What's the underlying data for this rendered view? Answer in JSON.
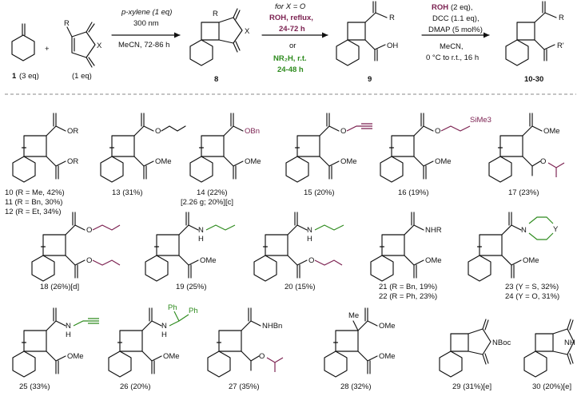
{
  "colors": {
    "maroon": "#7a1f4f",
    "green": "#2e8b1e",
    "ink": "#111111",
    "divider": "#888888"
  },
  "scheme": {
    "reagent1": {
      "num": "1",
      "eq": "(3 eq)"
    },
    "reagent2": {
      "eq": "(1 eq)",
      "R": "R",
      "X": "X"
    },
    "step1": {
      "above1": "p-xylene (1 eq)",
      "above2": "300 nm",
      "below": "MeCN, 72-86 h"
    },
    "product8": {
      "num": "8",
      "R": "R",
      "X": "X"
    },
    "step2": {
      "cond_x": "for X = O",
      "rohline": "ROH, reflux,",
      "rohtime": "24-72 h",
      "or": "or",
      "amine": "NR₂H, r.t.",
      "aminetime": "24-48 h"
    },
    "product9": {
      "num": "9",
      "R": "R",
      "oh": "OH"
    },
    "step3": {
      "roh": "ROH",
      "roh_eq": "(2 eq),",
      "dcc": "DCC (1.1 eq),",
      "dmap": "DMAP (5 mol%)",
      "solvent": "MeCN,",
      "temp": "0 °C to r.t., 16 h"
    },
    "product_final": {
      "num": "10-30",
      "R": "R",
      "R2": "R'"
    }
  },
  "compounds": [
    {
      "id": "c10",
      "label": "10 (R = Me, 42%)",
      "label2": "11 (R = Bn, 30%)",
      "label3": "12 (R = Et, 34%)",
      "top": "OR",
      "bottom": "OR"
    },
    {
      "id": "c13",
      "label": "13 (31%)",
      "bottom": "OMe"
    },
    {
      "id": "c14",
      "label": "14 (22%)",
      "label2": "[2.26 g; 20%][c]",
      "top": "OBn",
      "bottom": "OMe"
    },
    {
      "id": "c15",
      "label": "15 (20%)",
      "bottom": "OMe"
    },
    {
      "id": "c16",
      "label": "16 (19%)",
      "top": "SiMe3",
      "bottom": "OMe"
    },
    {
      "id": "c17",
      "label": "17 (23%)",
      "top": "OMe"
    },
    {
      "id": "c18",
      "label": "18 (26%)[d]"
    },
    {
      "id": "c19",
      "label": "19 (25%)",
      "nh": "N",
      "h": "H",
      "bottom": "OMe"
    },
    {
      "id": "c20",
      "label": "20 (15%)",
      "nh": "N",
      "h": "H"
    },
    {
      "id": "c21",
      "label": "21 (R = Bn, 19%)",
      "label2": "22 (R = Ph, 23%)",
      "top": "NHR",
      "bottom": "OMe"
    },
    {
      "id": "c23",
      "label": "23 (Y = S, 32%)",
      "label2": "24 (Y = O, 31%)",
      "n": "N",
      "y": "Y",
      "bottom": "OMe"
    },
    {
      "id": "c25",
      "label": "25 (33%)",
      "nh": "N",
      "h": "H",
      "bottom": "OMe"
    },
    {
      "id": "c26",
      "label": "26 (20%)",
      "nh": "N",
      "h": "H",
      "ph1": "Ph",
      "ph2": "Ph",
      "bottom": "OMe"
    },
    {
      "id": "c27",
      "label": "27 (35%)",
      "top": "NHBn"
    },
    {
      "id": "c28",
      "label": "28 (32%)",
      "me": "Me",
      "top": "OMe",
      "bottom": "OMe"
    },
    {
      "id": "c29",
      "label": "29 (31%)[e]",
      "n": "NBoc"
    },
    {
      "id": "c30",
      "label": "30 (20%)[e]",
      "n": "NH"
    }
  ]
}
